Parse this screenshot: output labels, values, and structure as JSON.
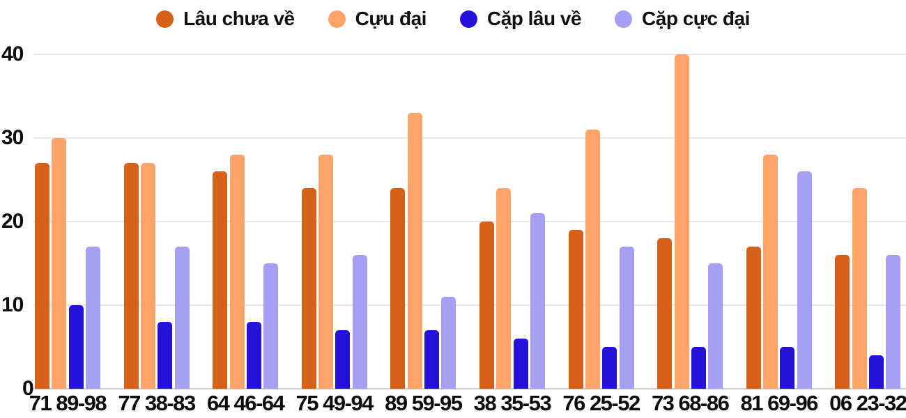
{
  "colors": {
    "background": "#ffffff",
    "gridline": "#e9e9e9",
    "axis_line": "#cccccc",
    "text": "#0d0d0d"
  },
  "chart_data": {
    "type": "bar",
    "title": "",
    "xlabel": "",
    "ylabel": "",
    "grid": true,
    "legend_position": "top",
    "ylim": [
      0,
      40
    ],
    "yticks": [
      0,
      10,
      20,
      30,
      40
    ],
    "categories": [
      "71 89-98",
      "77 38-83",
      "64 46-64",
      "75 49-94",
      "89 59-95",
      "38 35-53",
      "76 25-52",
      "73 68-86",
      "81 69-96",
      "06 23-32"
    ],
    "series": [
      {
        "name": "Lâu chưa về",
        "color": "#d8611a",
        "values": [
          27,
          27,
          26,
          24,
          24,
          20,
          19,
          18,
          17,
          16
        ]
      },
      {
        "name": "Cựu đại",
        "color": "#ffa469",
        "values": [
          30,
          27,
          28,
          28,
          33,
          24,
          31,
          40,
          28,
          24
        ]
      },
      {
        "name": "Cặp lâu về",
        "color": "#2512d9",
        "values": [
          10,
          8,
          8,
          7,
          7,
          6,
          5,
          5,
          5,
          4
        ]
      },
      {
        "name": "Cặp cực đại",
        "color": "#a6a0f4",
        "values": [
          17,
          17,
          15,
          16,
          11,
          21,
          17,
          15,
          26,
          16
        ]
      }
    ]
  }
}
